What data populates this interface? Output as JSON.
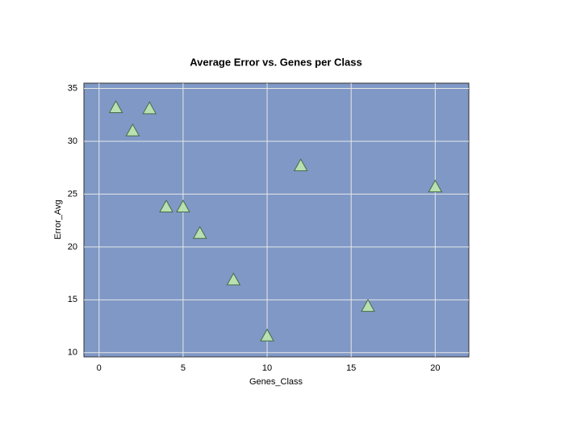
{
  "chart_data": {
    "type": "scatter",
    "title": "Average Error vs. Genes per Class",
    "x_label": "Genes_Class",
    "y_label": "Error_Avg",
    "x": [
      1,
      2,
      3,
      4,
      5,
      6,
      8,
      10,
      12,
      16,
      20
    ],
    "values": [
      33.2,
      31.0,
      33.1,
      23.8,
      23.8,
      21.3,
      16.9,
      11.6,
      27.7,
      14.4,
      25.7
    ],
    "color": "#b8e0b0",
    "background": "#7f98c6",
    "grid": true,
    "xlim": [
      -0.9,
      22
    ],
    "xticks": [
      0,
      5,
      10,
      15,
      20
    ],
    "ylim": [
      9.6,
      35.5
    ],
    "yticks": [
      10,
      15,
      20,
      25,
      30,
      35
    ]
  }
}
